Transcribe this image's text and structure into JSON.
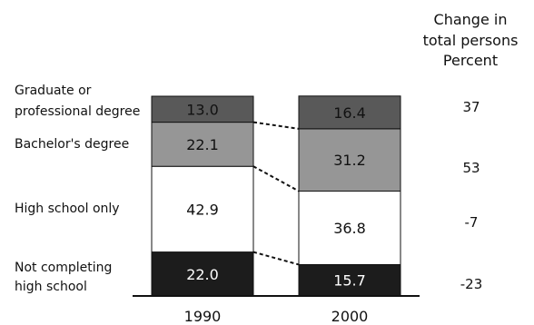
{
  "chart_data": {
    "type": "bar",
    "stacked": true,
    "categories": [
      "1990",
      "2000"
    ],
    "series": [
      {
        "name": "Not completing high school",
        "label": [
          "Not completing",
          "high school"
        ],
        "values": [
          22.0,
          15.7
        ],
        "color": "#1c1c1c",
        "text_color": "#ffffff"
      },
      {
        "name": "High school only",
        "label": [
          "High school only"
        ],
        "values": [
          42.9,
          36.8
        ],
        "color": "#ffffff",
        "text_color": "#111111"
      },
      {
        "name": "Bachelor's degree",
        "label": [
          "Bachelor's degree"
        ],
        "values": [
          22.1,
          31.2
        ],
        "color": "#969696",
        "text_color": "#111111"
      },
      {
        "name": "Graduate or professional degree",
        "label": [
          "Graduate or",
          "professional degree"
        ],
        "values": [
          13.0,
          16.4
        ],
        "color": "#595959",
        "text_color": "#111111"
      }
    ],
    "value_labels": [
      [
        "22.0",
        "15.7"
      ],
      [
        "42.9",
        "36.8"
      ],
      [
        "22.1",
        "31.2"
      ],
      [
        "13.0",
        "16.4"
      ]
    ],
    "change_header": [
      "Change in",
      "total persons",
      "Percent"
    ],
    "change_values": [
      "-23",
      "-7",
      "53",
      "37"
    ],
    "ylim": [
      0,
      100
    ],
    "grid": false,
    "legend": "left"
  }
}
